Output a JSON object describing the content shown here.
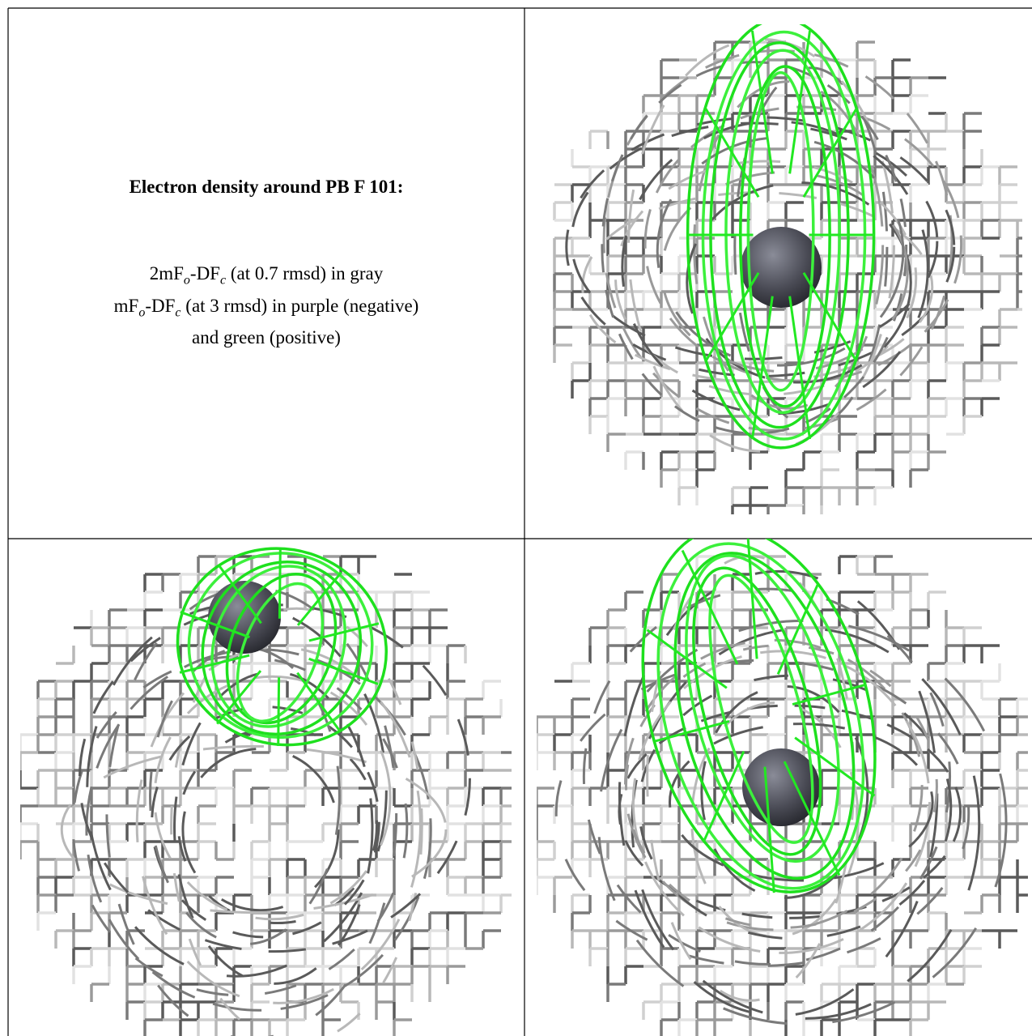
{
  "caption": {
    "title": "Electron density around PB F 101:",
    "lines": [
      [
        {
          "text": "2mF"
        },
        {
          "sub": "o"
        },
        {
          "text": "-DF"
        },
        {
          "sub": "c"
        },
        {
          "text": " (at 0.7 rmsd) in gray"
        }
      ],
      [
        {
          "text": "mF"
        },
        {
          "sub": "o"
        },
        {
          "text": "-DF"
        },
        {
          "sub": "c"
        },
        {
          "text": " (at 3 rmsd) in purple (negative)"
        }
      ],
      [
        {
          "text": "and green (positive)"
        }
      ]
    ]
  }
}
